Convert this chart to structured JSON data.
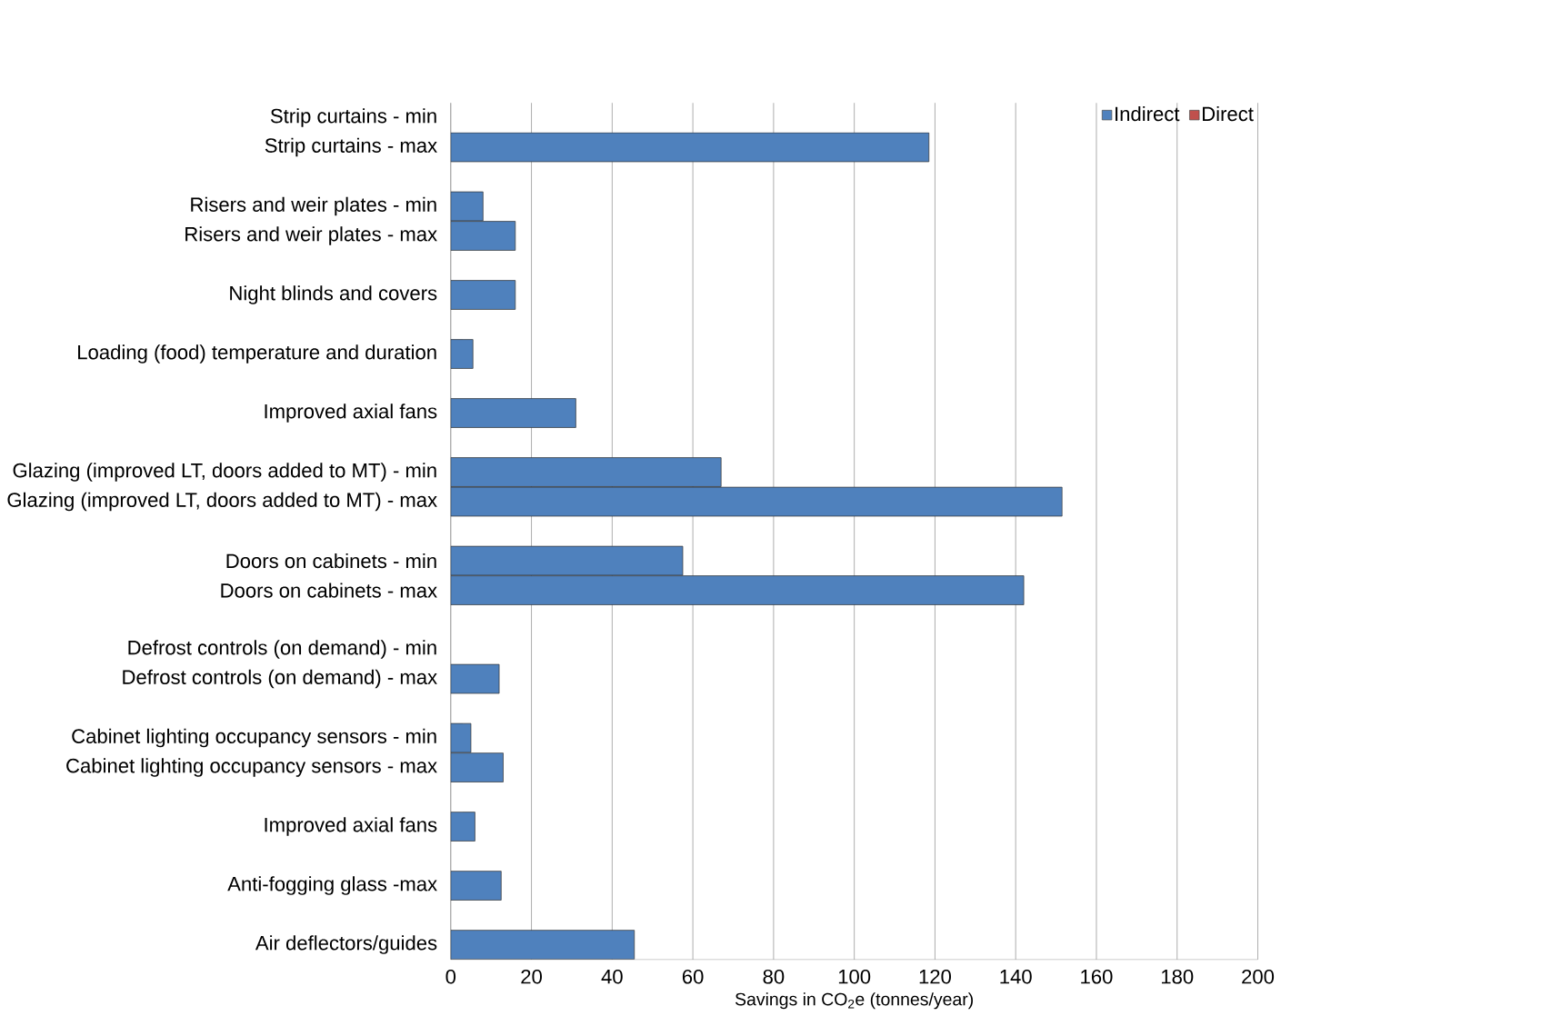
{
  "chart_data": {
    "type": "bar",
    "orientation": "horizontal",
    "stacked": true,
    "xlabel": "Savings in CO$_{2}$e (tonnes/year)",
    "categories": [
      "Strip curtains - min",
      "Strip curtains - max",
      null,
      "Risers and weir plates - min",
      "Risers and weir plates - max",
      null,
      "Night blinds and covers",
      null,
      "Loading (food) temperature and duration",
      null,
      "Improved axial fans",
      null,
      "Glazing (improved LT, doors added to MT) - min",
      "Glazing (improved LT, doors added to MT) - max",
      null,
      "Doors on cabinets - min",
      "Doors on cabinets - max",
      null,
      "Defrost controls (on demand) - min",
      "Defrost controls (on demand) - max",
      null,
      "Cabinet lighting occupancy sensors - min",
      "Cabinet lighting occupancy sensors - max",
      null,
      "Improved axial fans",
      null,
      "Anti-fogging glass -max",
      null,
      "Air deflectors/guides"
    ],
    "series": [
      {
        "name": "Indirect",
        "color": "#4f81bd",
        "values": [
          0,
          118.5,
          null,
          8,
          16,
          null,
          16,
          null,
          5.5,
          null,
          31,
          null,
          67,
          151.5,
          null,
          57.5,
          142,
          null,
          0,
          12,
          null,
          5,
          13,
          null,
          6,
          null,
          12.5,
          null,
          45.5
        ]
      },
      {
        "name": "Direct",
        "color": "#c0504d",
        "values": [
          0,
          0,
          null,
          0,
          0,
          null,
          0,
          null,
          0,
          null,
          0,
          null,
          0,
          0,
          null,
          0,
          0,
          null,
          0,
          0,
          null,
          0,
          0,
          null,
          0,
          null,
          0,
          null,
          0
        ]
      }
    ],
    "xlim": [
      0,
      200
    ],
    "xticks": [
      0,
      20,
      40,
      60,
      80,
      100,
      120,
      140,
      160,
      180,
      200
    ],
    "grid": "x",
    "legend": "top right"
  }
}
